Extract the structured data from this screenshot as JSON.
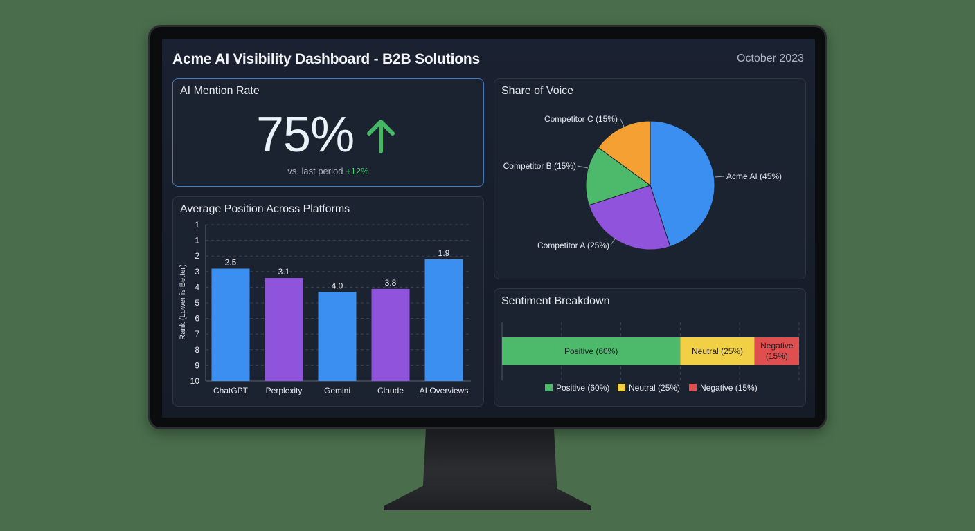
{
  "header": {
    "title": "Acme AI Visibility Dashboard - B2B Solutions",
    "date": "October 2023"
  },
  "mention_rate": {
    "title": "AI Mention Rate",
    "value": "75%",
    "trend_icon": "arrow-up-icon",
    "compare_label": "vs. last period",
    "delta": "+12%",
    "delta_color": "#4cc46e"
  },
  "avg_position": {
    "title": "Average Position Across Platforms",
    "ylabel": "Rank (Lower is Better)"
  },
  "share_of_voice": {
    "title": "Share of Voice"
  },
  "sentiment": {
    "title": "Sentiment Breakdown",
    "legend": [
      {
        "label": "Positive (60%)",
        "color": "#4cba6a"
      },
      {
        "label": "Neutral (25%)",
        "color": "#f2d046"
      },
      {
        "label": "Negative (15%)",
        "color": "#e04f4f"
      }
    ]
  },
  "chart_data": [
    {
      "type": "bar",
      "title": "Average Position Across Platforms",
      "xlabel": "",
      "ylabel": "Rank (Lower is Better)",
      "y_tick_labels": [
        "1",
        "1",
        "2",
        "3",
        "4",
        "5",
        "6",
        "7",
        "8",
        "9",
        "10"
      ],
      "ylim": [
        10,
        1
      ],
      "grid": true,
      "categories": [
        "ChatGPT",
        "Perplexity",
        "Gemini",
        "Claude",
        "AI Overviews"
      ],
      "values": [
        2.5,
        3.1,
        4.0,
        3.8,
        1.9
      ],
      "value_labels": [
        "2.5",
        "3.1",
        "4.0",
        "3.8",
        "1.9"
      ],
      "colors": [
        "#3b8ff0",
        "#9053db",
        "#3b8ff0",
        "#9053db",
        "#3b8ff0"
      ]
    },
    {
      "type": "pie",
      "title": "Share of Voice",
      "categories": [
        "Acme AI",
        "Competitor A",
        "Competitor B",
        "Competitor C"
      ],
      "values": [
        45,
        25,
        15,
        15
      ],
      "labels": [
        "Acme AI (45%)",
        "Competitor A (25%)",
        "Competitor B (15%)",
        "Competitor C (15%)"
      ],
      "colors": [
        "#3b8ff0",
        "#9053db",
        "#4cba6a",
        "#f5a032"
      ]
    },
    {
      "type": "bar",
      "orientation": "horizontal-stacked",
      "title": "Sentiment Breakdown",
      "categories": [
        "Positive",
        "Neutral",
        "Negative"
      ],
      "values": [
        60,
        25,
        15
      ],
      "labels": [
        "Positive (60%)",
        "Neutral (25%)",
        "Negative (15%)"
      ],
      "colors": [
        "#4cba6a",
        "#f2d046",
        "#e04f4f"
      ],
      "legend_position": "bottom",
      "grid": true
    }
  ]
}
